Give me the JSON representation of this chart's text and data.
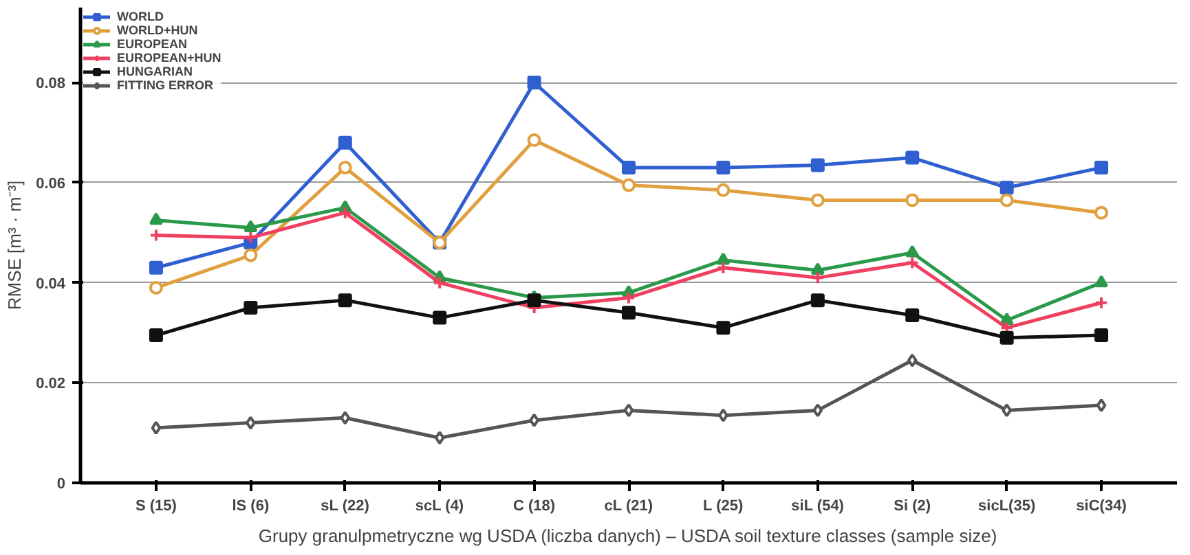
{
  "chart_data": {
    "type": "line",
    "xlabel": "Grupy granulpmetryczne wg USDA (liczba danych) – USDA soil texture classes (sample size)",
    "ylabel": "RMSE [m³ · m⁻³]",
    "categories": [
      "S (15)",
      "lS (6)",
      "sL (22)",
      "scL (4)",
      "C (18)",
      "cL (21)",
      "L (25)",
      "siL (54)",
      "Si (2)",
      "sicL(35)",
      "siC(34)"
    ],
    "ylim": [
      0,
      0.095
    ],
    "yticks": [
      0,
      0.02,
      0.04,
      0.06,
      0.08
    ],
    "grid": "y",
    "legend": "top left",
    "line_style": "solid",
    "series": [
      {
        "name": "WORLD",
        "color": "#2f5fd0",
        "marker": "square",
        "values": [
          0.043,
          0.048,
          0.068,
          0.048,
          0.08,
          0.063,
          0.063,
          0.0635,
          0.065,
          0.059,
          0.063
        ]
      },
      {
        "name": "WORLD+HUN",
        "color": "#e0a040",
        "marker": "circle",
        "values": [
          0.039,
          0.0455,
          0.063,
          0.048,
          0.0685,
          0.0595,
          0.0585,
          0.0565,
          0.0565,
          0.0565,
          0.054
        ]
      },
      {
        "name": "EUROPEAN",
        "color": "#2a9a4a",
        "marker": "triangle",
        "values": [
          0.0525,
          0.051,
          0.055,
          0.041,
          0.037,
          0.038,
          0.0445,
          0.0425,
          0.046,
          0.0325,
          0.04
        ]
      },
      {
        "name": "EUROPEAN+HUN",
        "color": "#f04060",
        "marker": "cross",
        "values": [
          0.0495,
          0.049,
          0.054,
          0.04,
          0.035,
          0.037,
          0.043,
          0.041,
          0.044,
          0.031,
          0.036
        ]
      },
      {
        "name": "HUNGARIAN",
        "color": "#111111",
        "marker": "square",
        "values": [
          0.0295,
          0.035,
          0.0365,
          0.033,
          0.0365,
          0.034,
          0.031,
          0.0365,
          0.0335,
          0.029,
          0.0295
        ]
      },
      {
        "name": "FITTING ERROR",
        "color": "#555555",
        "marker": "diamond",
        "values": [
          0.011,
          0.012,
          0.013,
          0.009,
          0.0125,
          0.0145,
          0.0135,
          0.0145,
          0.0245,
          0.0145,
          0.0155
        ]
      }
    ]
  }
}
